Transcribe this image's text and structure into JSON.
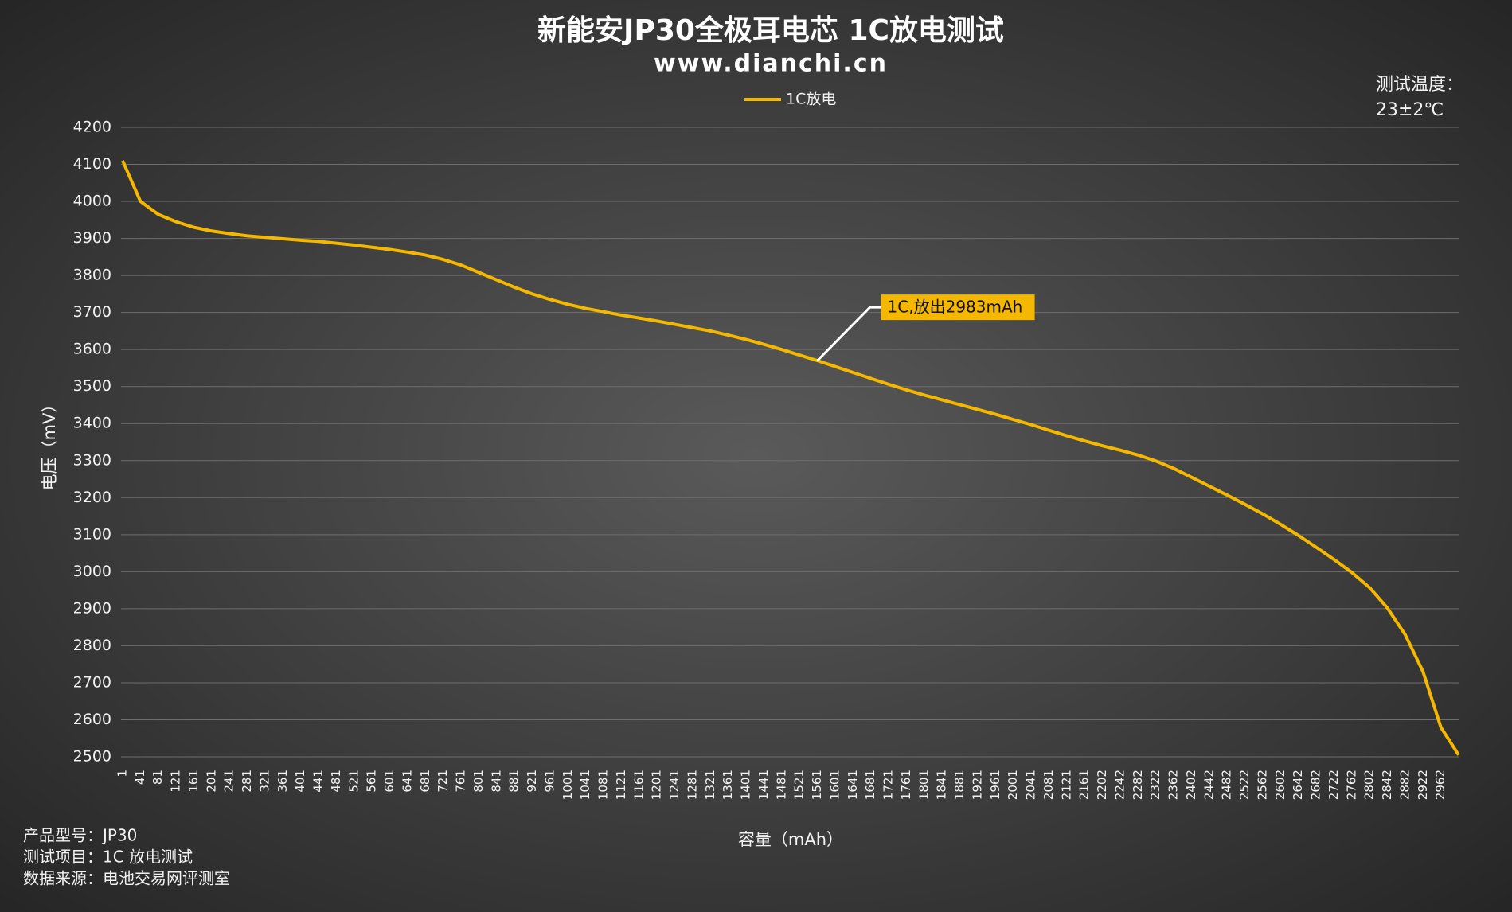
{
  "chart_data": {
    "type": "line",
    "title": "新能安JP30全极耳电芯 1C放电测试",
    "subtitle": "www.dianchi.cn",
    "x_label": "容量（mAh）",
    "y_label": "电压（mV）",
    "annotation": "1C,放出2983mAh",
    "temperature_title": "测试温度：",
    "temperature_value": "23±2℃",
    "notes": [
      "产品型号：JP30",
      "测试项目：1C 放电测试",
      "数据来源：电池交易网评测室"
    ],
    "categories": [
      "1",
      "41",
      "81",
      "121",
      "161",
      "201",
      "241",
      "281",
      "321",
      "361",
      "401",
      "441",
      "481",
      "521",
      "561",
      "601",
      "641",
      "681",
      "721",
      "761",
      "801",
      "841",
      "881",
      "921",
      "961",
      "1001",
      "1041",
      "1081",
      "1121",
      "1161",
      "1201",
      "1241",
      "1281",
      "1321",
      "1361",
      "1401",
      "1441",
      "1481",
      "1521",
      "1561",
      "1601",
      "1641",
      "1681",
      "1721",
      "1761",
      "1801",
      "1841",
      "1881",
      "1921",
      "1961",
      "2001",
      "2041",
      "2081",
      "2121",
      "2161",
      "2202",
      "2242",
      "2282",
      "2322",
      "2362",
      "2402",
      "2442",
      "2482",
      "2522",
      "2562",
      "2602",
      "2642",
      "2682",
      "2722",
      "2762",
      "2802",
      "2842",
      "2882",
      "2922",
      "2962",
      null
    ],
    "series": [
      {
        "name": "1C放电",
        "color": "#f5b800",
        "values": [
          4110,
          4000,
          3965,
          3945,
          3930,
          3920,
          3913,
          3907,
          3903,
          3899,
          3895,
          3892,
          3887,
          3882,
          3876,
          3870,
          3863,
          3855,
          3843,
          3828,
          3808,
          3788,
          3768,
          3750,
          3735,
          3722,
          3711,
          3702,
          3693,
          3685,
          3677,
          3668,
          3659,
          3650,
          3639,
          3627,
          3614,
          3600,
          3585,
          3570,
          3554,
          3538,
          3522,
          3506,
          3491,
          3477,
          3464,
          3451,
          3438,
          3425,
          3411,
          3397,
          3382,
          3367,
          3353,
          3340,
          3328,
          3315,
          3299,
          3279,
          3255,
          3231,
          3207,
          3182,
          3156,
          3128,
          3098,
          3066,
          3033,
          2998,
          2957,
          2902,
          2830,
          2730,
          2580,
          2505
        ]
      }
    ],
    "ylim": [
      2500,
      4200
    ],
    "yticks": [
      2500,
      2600,
      2700,
      2800,
      2900,
      3000,
      3100,
      3200,
      3300,
      3400,
      3500,
      3600,
      3700,
      3800,
      3900,
      4000,
      4100,
      4200
    ],
    "grid": true,
    "legend": "top"
  }
}
